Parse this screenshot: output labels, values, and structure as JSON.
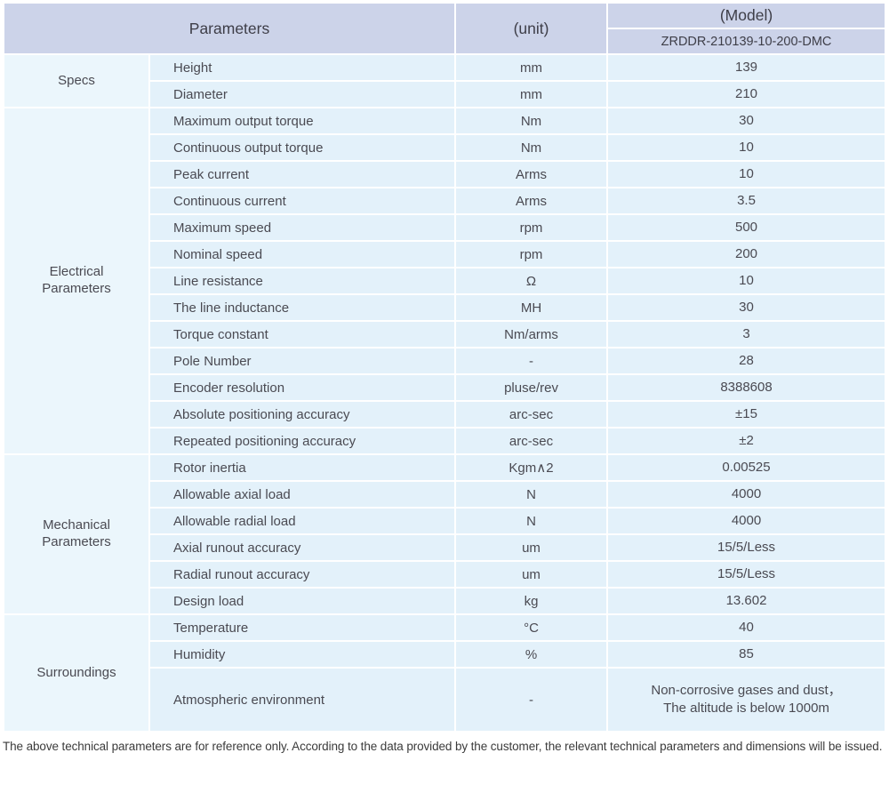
{
  "colors": {
    "header_bg": "#ccd3e9",
    "category_cell_bg": "#ebf6fc",
    "data_cell_bg": "#e3f1fa",
    "grid_line": "#ffffff",
    "text": "#46464e"
  },
  "table": {
    "header": {
      "parameters_label": "Parameters",
      "unit_label": "(unit)",
      "model_label": "(Model)",
      "model_value": "ZRDDR-210139-10-200-DMC"
    },
    "sections": [
      {
        "category": "Specs",
        "rows": [
          {
            "name": "Height",
            "unit": "mm",
            "value": "139"
          },
          {
            "name": "Diameter",
            "unit": "mm",
            "value": "210"
          }
        ]
      },
      {
        "category": "Electrical\nParameters",
        "rows": [
          {
            "name": "Maximum output torque",
            "unit": "Nm",
            "value": "30"
          },
          {
            "name": "Continuous output torque",
            "unit": "Nm",
            "value": "10"
          },
          {
            "name": "Peak current",
            "unit": "Arms",
            "value": "10"
          },
          {
            "name": "Continuous current",
            "unit": "Arms",
            "value": "3.5"
          },
          {
            "name": "Maximum speed",
            "unit": "rpm",
            "value": "500"
          },
          {
            "name": "Nominal speed",
            "unit": "rpm",
            "value": "200"
          },
          {
            "name": "Line resistance",
            "unit": "Ω",
            "value": "10"
          },
          {
            "name": "The line inductance",
            "unit": "MH",
            "value": "30"
          },
          {
            "name": "Torque constant",
            "unit": "Nm/arms",
            "value": "3"
          },
          {
            "name": "Pole Number",
            "unit": "-",
            "value": "28"
          },
          {
            "name": "Encoder resolution",
            "unit": "pluse/rev",
            "value": "8388608"
          },
          {
            "name": "Absolute positioning accuracy",
            "unit": "arc-sec",
            "value": "±15"
          },
          {
            "name": "Repeated positioning accuracy",
            "unit": "arc-sec",
            "value": "±2"
          }
        ]
      },
      {
        "category": "Mechanical\nParameters",
        "rows": [
          {
            "name": "Rotor inertia",
            "unit": "Kgm∧2",
            "value": "0.00525"
          },
          {
            "name": "Allowable axial load",
            "unit": "N",
            "value": "4000"
          },
          {
            "name": "Allowable radial load",
            "unit": "N",
            "value": "4000"
          },
          {
            "name": "Axial runout accuracy",
            "unit": "um",
            "value": "15/5/Less"
          },
          {
            "name": "Radial runout accuracy",
            "unit": "um",
            "value": "15/5/Less"
          },
          {
            "name": "Design load",
            "unit": "kg",
            "value": "13.602"
          }
        ]
      },
      {
        "category": "Surroundings",
        "rows": [
          {
            "name": "Temperature",
            "unit": "°C",
            "value": "40"
          },
          {
            "name": "Humidity",
            "unit": "%",
            "value": "85"
          },
          {
            "name": "Atmospheric environment",
            "unit": "-",
            "value": "Non-corrosive gases and dust，\nThe altitude is below 1000m"
          }
        ]
      }
    ]
  },
  "footer": {
    "note": "The above technical parameters are for reference only. According to the data provided by the customer, the relevant technical parameters and dimensions will be issued."
  }
}
